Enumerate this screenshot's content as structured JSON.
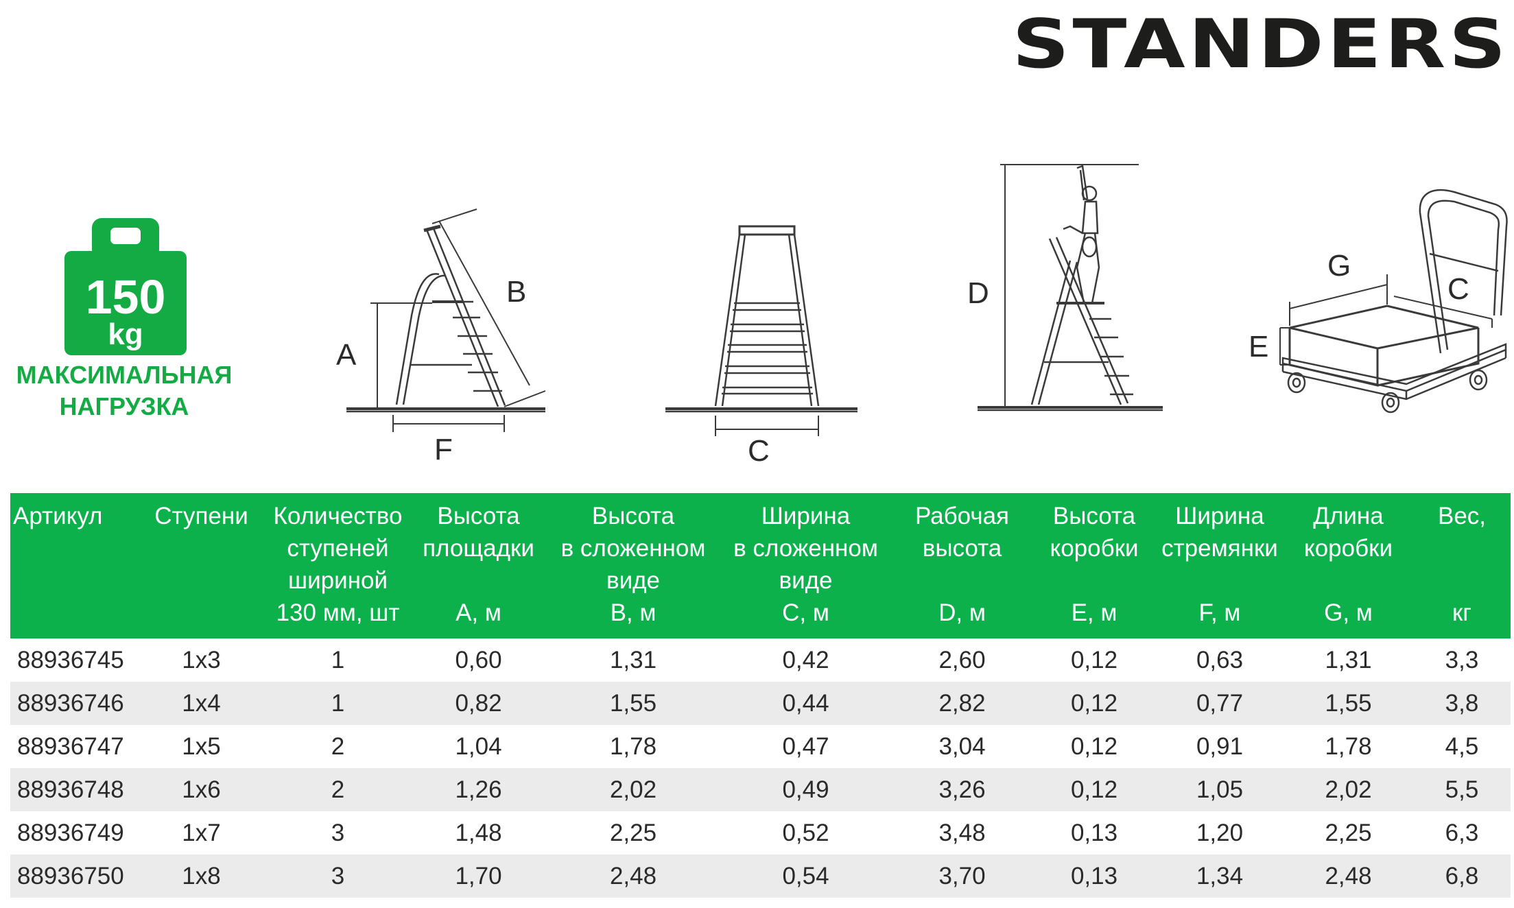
{
  "brand": {
    "logo_text": "STANDERS"
  },
  "load_badge": {
    "weight_value": "150",
    "weight_unit": "kg",
    "caption_line1": "МАКСИМАЛЬНАЯ",
    "caption_line2": "НАГРУЗКА",
    "color": "#14ab44"
  },
  "diagram_labels": {
    "a": "A",
    "b": "B",
    "f": "F",
    "c": "C",
    "d": "D",
    "g": "G",
    "box_c": "C",
    "e": "E"
  },
  "table": {
    "header_color": "#0db14b",
    "columns": [
      {
        "top": [
          "Артикул"
        ],
        "bottom": "",
        "align": "left"
      },
      {
        "top": [
          "Ступени"
        ],
        "bottom": "",
        "align": "center"
      },
      {
        "top": [
          "Количество",
          "ступеней",
          "шириной",
          "130 мм, шт"
        ],
        "bottom": "",
        "align": "center"
      },
      {
        "top": [
          "Высота",
          "площадки"
        ],
        "bottom": "A, м",
        "align": "center"
      },
      {
        "top": [
          "Высота",
          "в сложенном",
          "виде"
        ],
        "bottom": "B, м",
        "align": "center"
      },
      {
        "top": [
          "Ширина",
          "в сложенном",
          "виде"
        ],
        "bottom": "C, м",
        "align": "center"
      },
      {
        "top": [
          "Рабочая",
          "высота"
        ],
        "bottom": "D, м",
        "align": "center"
      },
      {
        "top": [
          "Высота",
          "коробки"
        ],
        "bottom": "E, м",
        "align": "center"
      },
      {
        "top": [
          "Ширина",
          "стремянки"
        ],
        "bottom": "F, м",
        "align": "center"
      },
      {
        "top": [
          "Длина",
          "коробки"
        ],
        "bottom": "G, м",
        "align": "center"
      },
      {
        "top": [
          "Вес,"
        ],
        "bottom": "кг",
        "align": "center"
      }
    ],
    "rows": [
      [
        "88936745",
        "1x3",
        "1",
        "0,60",
        "1,31",
        "0,42",
        "2,60",
        "0,12",
        "0,63",
        "1,31",
        "3,3"
      ],
      [
        "88936746",
        "1x4",
        "1",
        "0,82",
        "1,55",
        "0,44",
        "2,82",
        "0,12",
        "0,77",
        "1,55",
        "3,8"
      ],
      [
        "88936747",
        "1x5",
        "2",
        "1,04",
        "1,78",
        "0,47",
        "3,04",
        "0,12",
        "0,91",
        "1,78",
        "4,5"
      ],
      [
        "88936748",
        "1x6",
        "2",
        "1,26",
        "2,02",
        "0,49",
        "3,26",
        "0,12",
        "1,05",
        "2,02",
        "5,5"
      ],
      [
        "88936749",
        "1x7",
        "3",
        "1,48",
        "2,25",
        "0,52",
        "3,48",
        "0,13",
        "1,20",
        "2,25",
        "6,3"
      ],
      [
        "88936750",
        "1x8",
        "3",
        "1,70",
        "2,48",
        "0,54",
        "3,70",
        "0,13",
        "1,34",
        "2,48",
        "6,8"
      ]
    ]
  }
}
